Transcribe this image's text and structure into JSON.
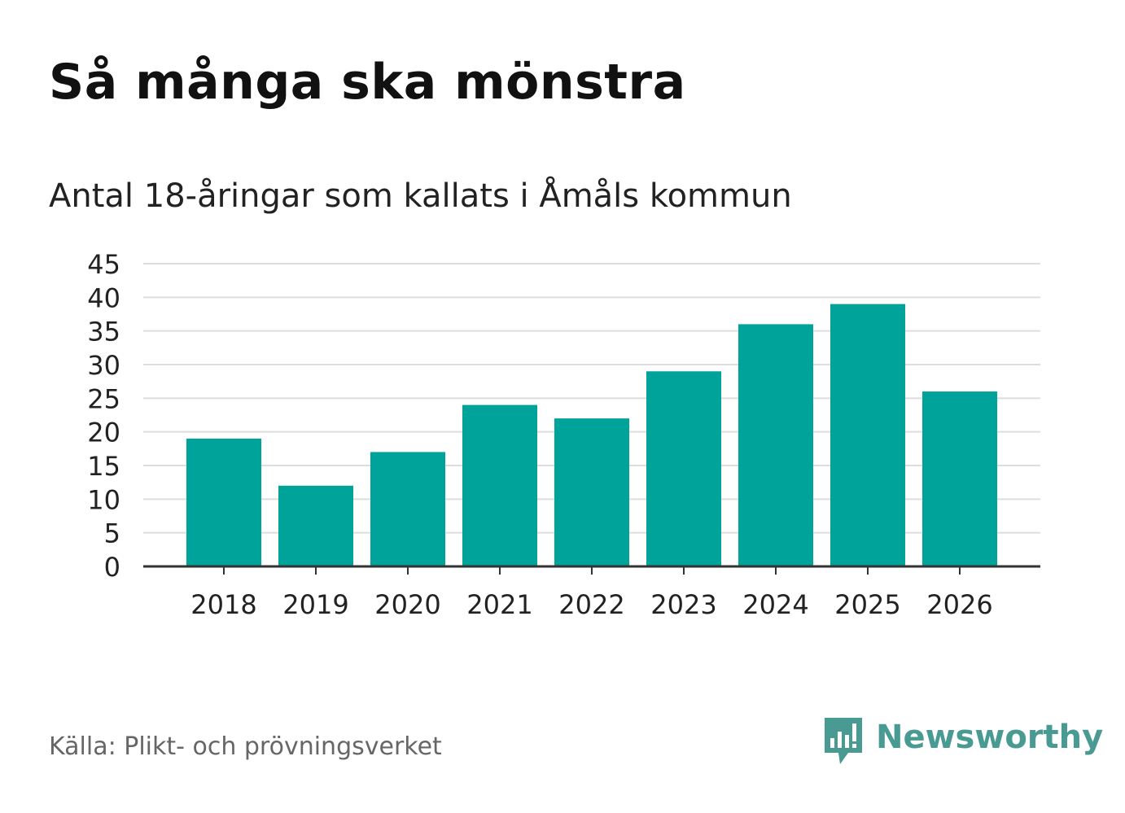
{
  "header": {
    "title": "Så många ska mönstra",
    "subtitle": "Antal 18-åringar som kallats i Åmåls kommun"
  },
  "footer": {
    "source": "Källa: Plikt- och prövningsverket",
    "brand": "Newsworthy",
    "brand_icon": "newsworthy-logo-icon"
  },
  "colors": {
    "bar": "#00a399",
    "grid": "#dddddd",
    "axis": "#333333",
    "brand": "#4a9a94"
  },
  "chart_data": {
    "type": "bar",
    "title": "Så många ska mönstra",
    "subtitle": "Antal 18-åringar som kallats i Åmåls kommun",
    "xlabel": "",
    "ylabel": "",
    "categories": [
      "2018",
      "2019",
      "2020",
      "2021",
      "2022",
      "2023",
      "2024",
      "2025",
      "2026"
    ],
    "values": [
      19,
      12,
      17,
      24,
      22,
      29,
      36,
      39,
      26
    ],
    "ylim": [
      0,
      45
    ],
    "yticks": [
      0,
      5,
      10,
      15,
      20,
      25,
      30,
      35,
      40,
      45
    ],
    "grid": true,
    "legend": "none"
  }
}
